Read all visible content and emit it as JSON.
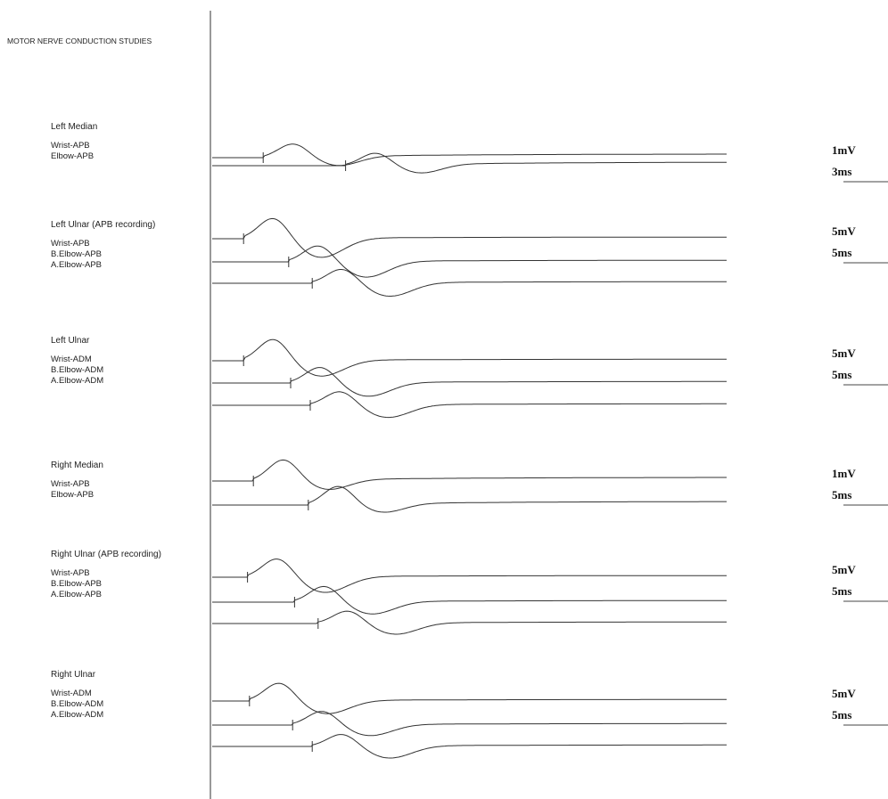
{
  "chart_data": {
    "type": "line",
    "title": "MOTOR NERVE CONDUCTION STUDIES",
    "panels": [
      {
        "name": "Left Median",
        "scale": [
          "1mV",
          "3ms"
        ],
        "traces": [
          {
            "label": "Wrist-APB",
            "onset": 2.6,
            "amp": 2.2,
            "latent": 0.55,
            "width": 1.0,
            "amp2": 1.5,
            "width2": 1.3
          },
          {
            "label": "Elbow-APB",
            "onset": 6.8,
            "amp": 2.0,
            "latent": 0.55,
            "width": 1.0,
            "amp2": 1.4,
            "width2": 1.3
          }
        ]
      },
      {
        "name": "Left Ulnar (APB recording)",
        "scale": [
          "5mV",
          "5ms"
        ],
        "traces": [
          {
            "label": "Wrist-APB",
            "onset": 1.6,
            "amp": 7.6,
            "latent": 0.55,
            "width": 1.0,
            "amp2": 6.8,
            "width2": 1.4
          },
          {
            "label": "B.Elbow-APB",
            "onset": 3.9,
            "amp": 6.0,
            "latent": 0.55,
            "width": 1.0,
            "amp2": 5.6,
            "width2": 1.4
          },
          {
            "label": "A.Elbow-APB",
            "onset": 5.1,
            "amp": 5.2,
            "latent": 0.55,
            "width": 1.0,
            "amp2": 4.8,
            "width2": 1.4
          }
        ]
      },
      {
        "name": "Left Ulnar",
        "scale": [
          "5mV",
          "5ms"
        ],
        "traces": [
          {
            "label": "Wrist-ADM",
            "onset": 1.6,
            "amp": 8.4,
            "latent": 0.55,
            "width": 1.0,
            "amp2": 6.0,
            "width2": 1.4
          },
          {
            "label": "B.Elbow-ADM",
            "onset": 4.0,
            "amp": 6.2,
            "latent": 0.55,
            "width": 1.0,
            "amp2": 5.2,
            "width2": 1.4
          },
          {
            "label": "A.Elbow-ADM",
            "onset": 5.0,
            "amp": 5.4,
            "latent": 0.55,
            "width": 1.0,
            "amp2": 4.8,
            "width2": 1.4
          }
        ]
      },
      {
        "name": "Right Median",
        "scale": [
          "1mV",
          "5ms"
        ],
        "traces": [
          {
            "label": "Wrist-APB",
            "onset": 2.1,
            "amp": 3.4,
            "latent": 0.55,
            "width": 1.0,
            "amp2": 1.6,
            "width2": 1.3
          },
          {
            "label": "Elbow-APB",
            "onset": 4.9,
            "amp": 3.0,
            "latent": 0.55,
            "width": 1.0,
            "amp2": 1.4,
            "width2": 1.3
          }
        ]
      },
      {
        "name": "Right Ulnar (APB recording)",
        "scale": [
          "5mV",
          "5ms"
        ],
        "traces": [
          {
            "label": "Wrist-APB",
            "onset": 1.8,
            "amp": 6.8,
            "latent": 0.55,
            "width": 1.0,
            "amp2": 5.6,
            "width2": 1.4
          },
          {
            "label": "B.Elbow-APB",
            "onset": 4.2,
            "amp": 5.8,
            "latent": 0.55,
            "width": 1.0,
            "amp2": 4.4,
            "width2": 1.4
          },
          {
            "label": "A.Elbow-APB",
            "onset": 5.4,
            "amp": 4.6,
            "latent": 0.55,
            "width": 1.0,
            "amp2": 4.0,
            "width2": 1.4
          }
        ]
      },
      {
        "name": "Right Ulnar",
        "scale": [
          "5mV",
          "5ms"
        ],
        "traces": [
          {
            "label": "Wrist-ADM",
            "onset": 1.9,
            "amp": 7.0,
            "latent": 0.55,
            "width": 1.0,
            "amp2": 5.0,
            "width2": 1.4
          },
          {
            "label": "B.Elbow-ADM",
            "onset": 4.1,
            "amp": 5.4,
            "latent": 0.55,
            "width": 1.0,
            "amp2": 4.2,
            "width2": 1.4
          },
          {
            "label": "A.Elbow-ADM",
            "onset": 5.1,
            "amp": 4.8,
            "latent": 0.55,
            "width": 1.0,
            "amp2": 4.6,
            "width2": 1.4
          }
        ]
      }
    ]
  }
}
